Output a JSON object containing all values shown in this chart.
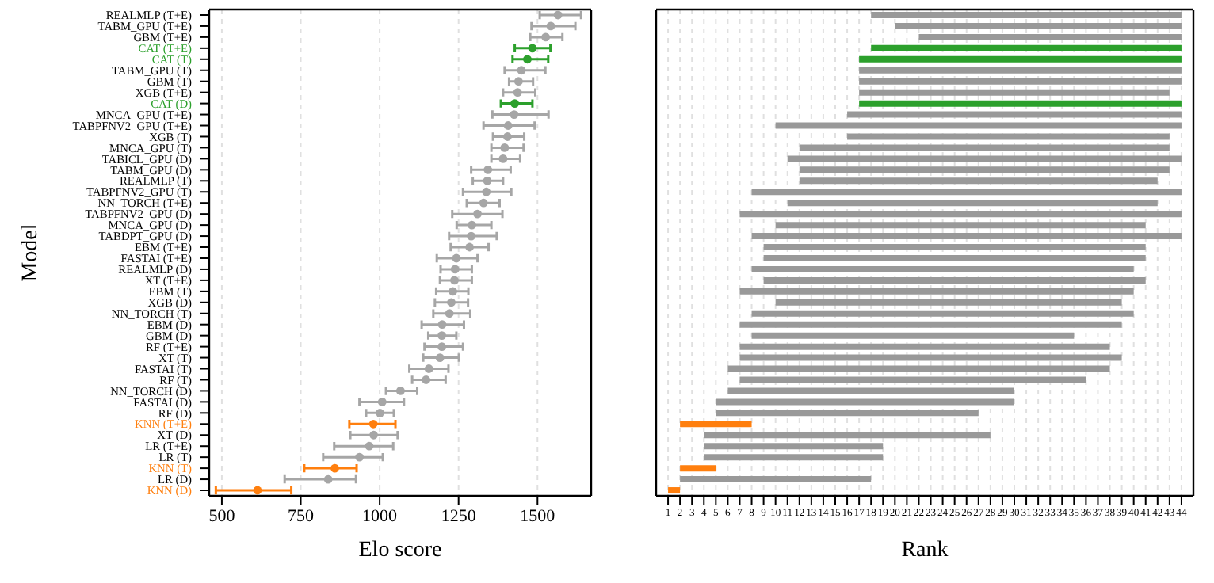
{
  "chart_data": [
    {
      "type": "scatter",
      "orientation": "horizontal",
      "xlabel": "Elo score",
      "ylabel": "Model",
      "categories": [
        "REALMLP (T+E)",
        "TABM_GPU (T+E)",
        "GBM (T+E)",
        "CAT (T+E)",
        "CAT (T)",
        "TABM_GPU (T)",
        "GBM (T)",
        "XGB (T+E)",
        "CAT (D)",
        "MNCA_GPU (T+E)",
        "TABPFNV2_GPU (T+E)",
        "XGB (T)",
        "MNCA_GPU (T)",
        "TABICL_GPU (D)",
        "TABM_GPU (D)",
        "REALMLP (T)",
        "TABPFNV2_GPU (T)",
        "NN_TORCH (T+E)",
        "TABPFNV2_GPU (D)",
        "MNCA_GPU (D)",
        "TABDPT_GPU (D)",
        "EBM (T+E)",
        "FASTAI (T+E)",
        "REALMLP (D)",
        "XT (T+E)",
        "EBM (T)",
        "XGB (D)",
        "NN_TORCH (T)",
        "EBM (D)",
        "GBM (D)",
        "RF (T+E)",
        "XT (T)",
        "FASTAI (T)",
        "RF (T)",
        "NN_TORCH (D)",
        "FASTAI (D)",
        "RF (D)",
        "KNN (T+E)",
        "XT (D)",
        "LR (T+E)",
        "LR (T)",
        "KNN (T)",
        "LR (D)",
        "KNN (D)"
      ],
      "values": [
        1565,
        1542,
        1526,
        1484,
        1468,
        1449,
        1440,
        1437,
        1428,
        1426,
        1407,
        1405,
        1396,
        1391,
        1343,
        1341,
        1338,
        1329,
        1310,
        1292,
        1290,
        1285,
        1243,
        1239,
        1237,
        1232,
        1227,
        1221,
        1198,
        1197,
        1197,
        1191,
        1156,
        1147,
        1066,
        1008,
        1001,
        980,
        981,
        967,
        936,
        858,
        837,
        613
      ],
      "errors": [
        [
          1507,
          1638
        ],
        [
          1481,
          1620
        ],
        [
          1477,
          1579
        ],
        [
          1428,
          1541
        ],
        [
          1421,
          1534
        ],
        [
          1396,
          1525
        ],
        [
          1410,
          1486
        ],
        [
          1391,
          1493
        ],
        [
          1384,
          1484
        ],
        [
          1357,
          1535
        ],
        [
          1329,
          1491
        ],
        [
          1359,
          1458
        ],
        [
          1354,
          1456
        ],
        [
          1354,
          1445
        ],
        [
          1290,
          1415
        ],
        [
          1295,
          1391
        ],
        [
          1264,
          1417
        ],
        [
          1276,
          1380
        ],
        [
          1230,
          1389
        ],
        [
          1244,
          1354
        ],
        [
          1220,
          1371
        ],
        [
          1225,
          1345
        ],
        [
          1181,
          1310
        ],
        [
          1193,
          1292
        ],
        [
          1191,
          1292
        ],
        [
          1179,
          1281
        ],
        [
          1175,
          1280
        ],
        [
          1170,
          1287
        ],
        [
          1133,
          1267
        ],
        [
          1154,
          1243
        ],
        [
          1142,
          1264
        ],
        [
          1138,
          1251
        ],
        [
          1094,
          1218
        ],
        [
          1103,
          1209
        ],
        [
          1020,
          1119
        ],
        [
          936,
          1077
        ],
        [
          957,
          1045
        ],
        [
          904,
          1050
        ],
        [
          907,
          1057
        ],
        [
          856,
          1043
        ],
        [
          821,
          1010
        ],
        [
          761,
          927
        ],
        [
          699,
          925
        ],
        [
          481,
          720
        ]
      ],
      "color": "#a6a6a6",
      "colors": [
        "#a6a6a6",
        "#a6a6a6",
        "#a6a6a6",
        "#2ca02c",
        "#2ca02c",
        "#a6a6a6",
        "#a6a6a6",
        "#a6a6a6",
        "#2ca02c",
        "#a6a6a6",
        "#a6a6a6",
        "#a6a6a6",
        "#a6a6a6",
        "#a6a6a6",
        "#a6a6a6",
        "#a6a6a6",
        "#a6a6a6",
        "#a6a6a6",
        "#a6a6a6",
        "#a6a6a6",
        "#a6a6a6",
        "#a6a6a6",
        "#a6a6a6",
        "#a6a6a6",
        "#a6a6a6",
        "#a6a6a6",
        "#a6a6a6",
        "#a6a6a6",
        "#a6a6a6",
        "#a6a6a6",
        "#a6a6a6",
        "#a6a6a6",
        "#a6a6a6",
        "#a6a6a6",
        "#a6a6a6",
        "#a6a6a6",
        "#a6a6a6",
        "#ff7f0e",
        "#a6a6a6",
        "#a6a6a6",
        "#a6a6a6",
        "#ff7f0e",
        "#a6a6a6",
        "#ff7f0e"
      ],
      "xlim": [
        460,
        1670
      ],
      "xticks": [
        500,
        750,
        1000,
        1250,
        1500
      ],
      "grid": "x",
      "marker": "circle"
    },
    {
      "type": "bar",
      "orientation": "horizontal",
      "xlabel": "Rank",
      "tick_labels": "x",
      "categories": [
        null,
        null,
        null,
        null,
        null,
        null,
        null,
        null,
        null,
        null,
        null,
        null,
        null,
        null,
        null,
        null,
        null,
        null,
        null,
        null,
        null,
        null,
        null,
        null,
        null,
        null,
        null,
        null,
        null,
        null,
        null,
        null,
        null,
        null,
        null,
        null,
        null,
        null,
        null,
        null,
        null,
        null,
        null,
        null
      ],
      "base": [
        18,
        20,
        22,
        18,
        17,
        17,
        17,
        17,
        17,
        16,
        10,
        16,
        12,
        11,
        12,
        12,
        8,
        11,
        7,
        10,
        8,
        9,
        9,
        8,
        9,
        7,
        10,
        8,
        7,
        8,
        7,
        7,
        6,
        7,
        6,
        5,
        5,
        2,
        4,
        4,
        4,
        2,
        2,
        1
      ],
      "values": [
        26,
        24,
        22,
        26,
        27,
        27,
        27,
        26,
        27,
        28,
        34,
        27,
        31,
        33,
        31,
        30,
        36,
        31,
        37,
        31,
        36,
        32,
        32,
        32,
        32,
        33,
        29,
        32,
        32,
        27,
        31,
        32,
        32,
        29,
        24,
        25,
        22,
        6,
        24,
        15,
        15,
        3,
        16,
        1
      ],
      "colors": [
        "#999999",
        "#999999",
        "#999999",
        "#2ca02c",
        "#2ca02c",
        "#999999",
        "#999999",
        "#999999",
        "#2ca02c",
        "#999999",
        "#999999",
        "#999999",
        "#999999",
        "#999999",
        "#999999",
        "#999999",
        "#999999",
        "#999999",
        "#999999",
        "#999999",
        "#999999",
        "#999999",
        "#999999",
        "#999999",
        "#999999",
        "#999999",
        "#999999",
        "#999999",
        "#999999",
        "#999999",
        "#999999",
        "#999999",
        "#999999",
        "#999999",
        "#999999",
        "#999999",
        "#999999",
        "#ff7f0e",
        "#999999",
        "#999999",
        "#999999",
        "#ff7f0e",
        "#999999",
        "#ff7f0e"
      ],
      "xlim": [
        0,
        45
      ],
      "xticks": [
        1,
        2,
        3,
        4,
        5,
        6,
        7,
        8,
        9,
        10,
        11,
        12,
        13,
        14,
        15,
        16,
        17,
        18,
        19,
        20,
        21,
        22,
        23,
        24,
        25,
        26,
        27,
        28,
        29,
        30,
        31,
        32,
        33,
        34,
        35,
        36,
        37,
        38,
        39,
        40,
        41,
        42,
        43,
        44
      ],
      "grid": "x"
    }
  ]
}
